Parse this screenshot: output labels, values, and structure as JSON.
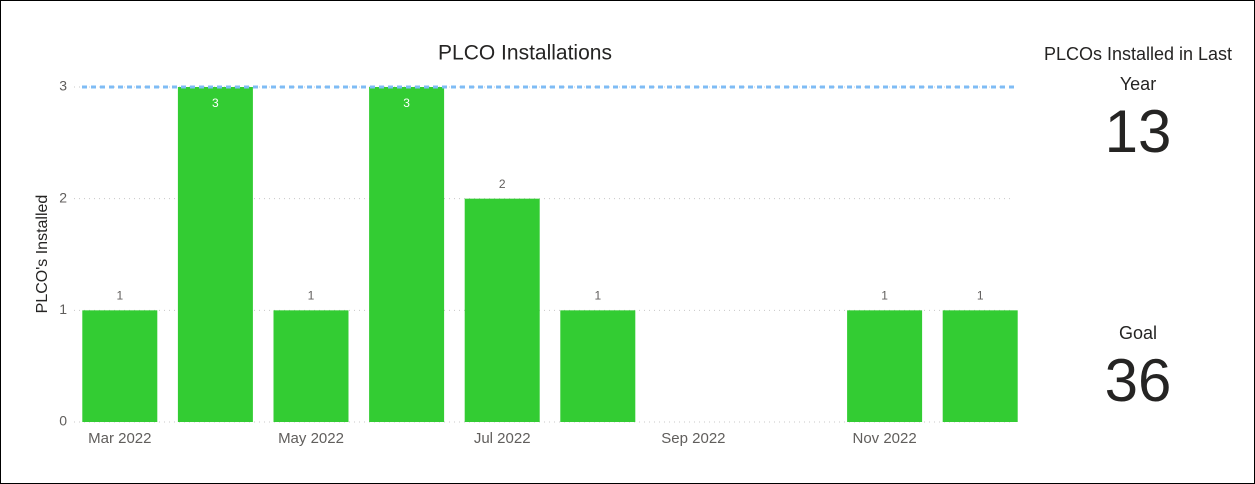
{
  "chart_data": {
    "type": "bar",
    "title": "PLCO Installations",
    "y_label": "PLCO's Installed",
    "categories": [
      "Mar 2022",
      null,
      "May 2022",
      null,
      "Jul 2022",
      null,
      "Sep 2022",
      null,
      "Nov 2022",
      null
    ],
    "values": [
      1,
      3,
      1,
      3,
      2,
      1,
      0,
      0,
      1,
      1
    ],
    "color": "#33cc33",
    "ylim": [
      0,
      3
    ],
    "yticks": [
      0,
      1,
      2,
      3
    ],
    "grid": true,
    "reference_line": {
      "value": 3,
      "color": "#7fbcf5"
    }
  },
  "cards": [
    {
      "label": "PLCOs Installed in Last Year",
      "value": 13
    },
    {
      "label": "Goal",
      "value": 36
    }
  ]
}
